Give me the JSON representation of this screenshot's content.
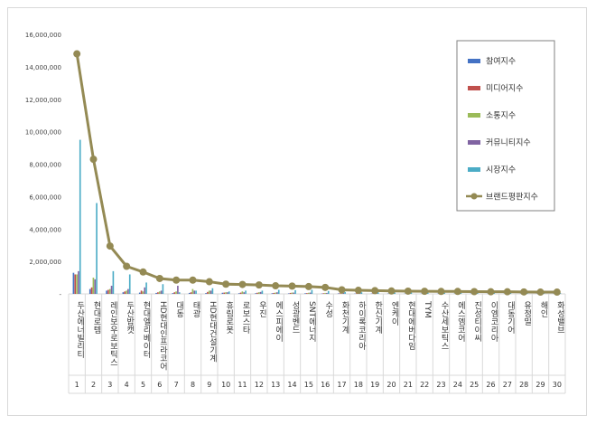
{
  "chart_data": {
    "type": "bar",
    "ylim": [
      0,
      16000000
    ],
    "yticks": [
      "-",
      "2,000,000",
      "4,000,000",
      "6,000,000",
      "8,000,000",
      "10,000,000",
      "12,000,000",
      "14,000,000",
      "16,000,000"
    ],
    "categories": [
      "두산에너빌리티",
      "현대로템",
      "레인보우로보틱스",
      "두산밥캣",
      "현대엘리베이터",
      "HD현대인프라코어",
      "대동",
      "태광",
      "HD현대건설기계",
      "휴림로봇",
      "로보스타",
      "우진",
      "에스피에이",
      "성광벤드",
      "SNT에너지",
      "수성",
      "화천기계",
      "하이록코리아",
      "한신기계",
      "엔케이",
      "현대에버다임",
      "TYM",
      "수산세보틱스",
      "에스엠코어",
      "진성티이씨",
      "이엠코리아",
      "대동기어",
      "유정밀",
      "해인",
      "화성밸브"
    ],
    "index_labels": [
      "1",
      "2",
      "3",
      "4",
      "5",
      "6",
      "7",
      "8",
      "9",
      "10",
      "11",
      "12",
      "13",
      "14",
      "15",
      "16",
      "17",
      "18",
      "19",
      "20",
      "21",
      "22",
      "23",
      "24",
      "25",
      "26",
      "27",
      "28",
      "29",
      "30"
    ],
    "series": [
      {
        "name": "참여지수",
        "color": "#4472c4",
        "kind": "bar",
        "values": [
          1300000,
          300000,
          200000,
          100000,
          80000,
          60000,
          50000,
          60000,
          50000,
          70000,
          40000,
          40000,
          40000,
          30000,
          40000,
          20000,
          30000,
          20000,
          20000,
          20000,
          15000,
          15000,
          15000,
          15000,
          15000,
          10000,
          10000,
          10000,
          10000,
          10000
        ]
      },
      {
        "name": "미디어지수",
        "color": "#c0504d",
        "kind": "bar",
        "values": [
          1200000,
          400000,
          250000,
          150000,
          200000,
          100000,
          100000,
          100000,
          120000,
          80000,
          80000,
          70000,
          60000,
          60000,
          50000,
          40000,
          40000,
          40000,
          30000,
          30000,
          30000,
          25000,
          25000,
          25000,
          20000,
          20000,
          20000,
          15000,
          15000,
          15000
        ]
      },
      {
        "name": "소통지수",
        "color": "#9bbb59",
        "kind": "bar",
        "values": [
          1200000,
          1000000,
          300000,
          200000,
          150000,
          150000,
          150000,
          300000,
          200000,
          100000,
          150000,
          100000,
          80000,
          80000,
          70000,
          60000,
          50000,
          50000,
          40000,
          40000,
          40000,
          30000,
          30000,
          30000,
          25000,
          25000,
          20000,
          20000,
          20000,
          20000
        ]
      },
      {
        "name": "커뮤니티지수",
        "color": "#8064a2",
        "kind": "bar",
        "values": [
          1400000,
          900000,
          500000,
          300000,
          400000,
          200000,
          500000,
          200000,
          200000,
          100000,
          100000,
          120000,
          100000,
          80000,
          80000,
          60000,
          60000,
          50000,
          50000,
          40000,
          40000,
          40000,
          30000,
          30000,
          30000,
          25000,
          25000,
          20000,
          20000,
          20000
        ]
      },
      {
        "name": "시장지수",
        "color": "#4bacc6",
        "kind": "bar",
        "values": [
          9500000,
          5600000,
          1400000,
          1200000,
          700000,
          600000,
          100000,
          200000,
          350000,
          150000,
          200000,
          200000,
          250000,
          230000,
          250000,
          180000,
          120000,
          100000,
          100000,
          80000,
          80000,
          80000,
          70000,
          70000,
          70000,
          60000,
          60000,
          50000,
          50000,
          50000
        ]
      },
      {
        "name": "브랜드평판지수",
        "color": "#948a54",
        "kind": "line",
        "values": [
          14800000,
          8300000,
          2950000,
          1700000,
          1350000,
          950000,
          850000,
          850000,
          750000,
          600000,
          580000,
          550000,
          500000,
          480000,
          450000,
          400000,
          250000,
          220000,
          200000,
          180000,
          170000,
          160000,
          150000,
          150000,
          140000,
          130000,
          130000,
          120000,
          110000,
          110000
        ]
      }
    ],
    "legend_position": "top-right",
    "grid": false
  }
}
